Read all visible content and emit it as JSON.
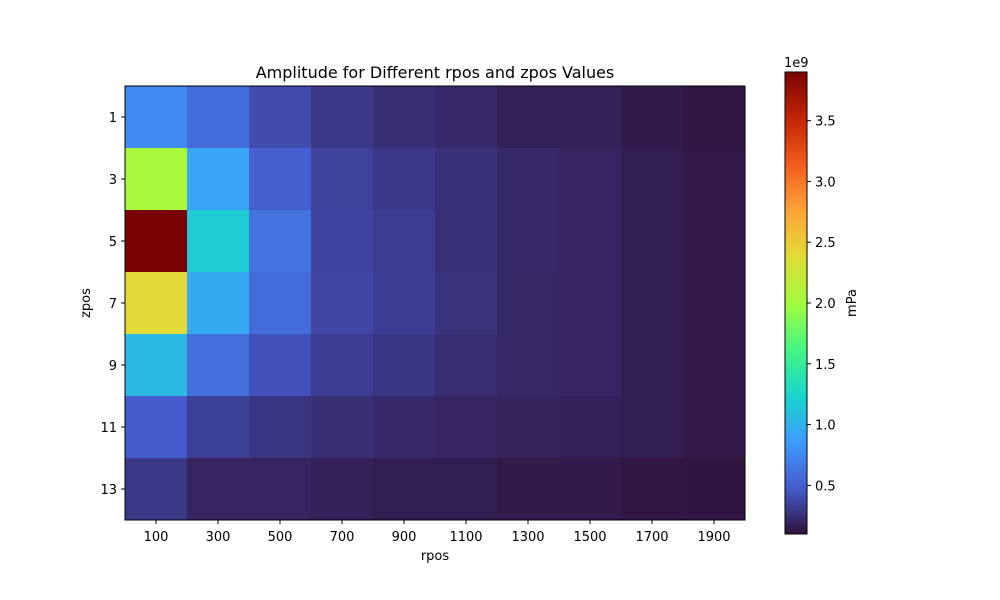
{
  "chart_data": {
    "type": "heatmap",
    "title": "Amplitude for Different rpos and zpos Values",
    "xlabel": "rpos",
    "ylabel": "zpos",
    "x": [
      100,
      300,
      500,
      700,
      900,
      1100,
      1300,
      1500,
      1700,
      1900
    ],
    "y": [
      1,
      3,
      5,
      7,
      9,
      11,
      13
    ],
    "values": [
      [
        0.75,
        0.58,
        0.4,
        0.3,
        0.25,
        0.22,
        0.17,
        0.17,
        0.14,
        0.12
      ],
      [
        2.05,
        0.92,
        0.5,
        0.35,
        0.3,
        0.26,
        0.22,
        0.2,
        0.16,
        0.13
      ],
      [
        3.9,
        1.18,
        0.62,
        0.36,
        0.32,
        0.26,
        0.22,
        0.2,
        0.16,
        0.13
      ],
      [
        2.4,
        0.95,
        0.58,
        0.37,
        0.33,
        0.27,
        0.21,
        0.2,
        0.16,
        0.13
      ],
      [
        1.05,
        0.6,
        0.43,
        0.33,
        0.29,
        0.24,
        0.21,
        0.2,
        0.16,
        0.13
      ],
      [
        0.48,
        0.34,
        0.28,
        0.25,
        0.22,
        0.2,
        0.19,
        0.18,
        0.16,
        0.13
      ],
      [
        0.3,
        0.2,
        0.2,
        0.18,
        0.16,
        0.16,
        0.14,
        0.14,
        0.12,
        0.11
      ]
    ],
    "value_scale": "1e9",
    "colorbar": {
      "label": "mPa",
      "multiplier_label": "1e9",
      "min": 0.1,
      "max": 3.9,
      "ticks": [
        "0.5",
        "1.0",
        "1.5",
        "2.0",
        "2.5",
        "3.0",
        "3.5"
      ],
      "colormap": "turbo"
    },
    "grid": false
  }
}
